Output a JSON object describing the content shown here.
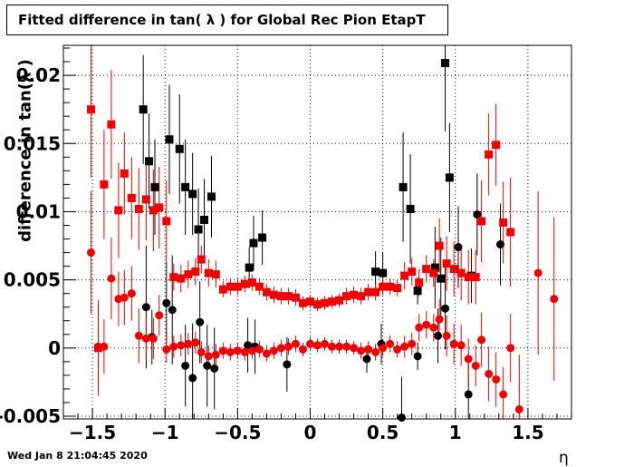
{
  "chart_data": {
    "type": "scatter",
    "title": "Fitted difference in tan( λ ) for Global Rec Pion EtapT",
    "xlabel": "η",
    "ylabel": "difference in tan(λ )",
    "xlim": [
      -1.7,
      1.8
    ],
    "ylim": [
      -0.0052,
      0.0222
    ],
    "xticks": [
      -1.5,
      -1,
      -0.5,
      0,
      0.5,
      1,
      1.5
    ],
    "xtick_labels": [
      "−1.5",
      "−1",
      "−0.5",
      "0",
      "0.5",
      "1",
      "1.5"
    ],
    "yticks": [
      -0.005,
      0,
      0.005,
      0.01,
      0.015,
      0.02
    ],
    "ytick_labels": [
      "-0.005",
      "0",
      "0.005",
      "0.01",
      "0.015",
      "0.02"
    ],
    "grid": true,
    "series": [
      {
        "color": "#000000",
        "marker": "square",
        "points": [
          [
            -1.15,
            0.0175,
            0.004
          ],
          [
            -1.11,
            0.0137,
            0.0035
          ],
          [
            -1.07,
            0.0118,
            0.0035
          ],
          [
            -0.97,
            0.0153,
            0.004
          ],
          [
            -0.9,
            0.0146,
            0.004
          ],
          [
            -0.86,
            0.0118,
            0.0035
          ],
          [
            -0.81,
            0.0113,
            0.003
          ],
          [
            -0.77,
            0.0087,
            0.003
          ],
          [
            -0.73,
            0.0094,
            0.003
          ],
          [
            -0.68,
            0.0111,
            0.003
          ],
          [
            -0.39,
            0.0077,
            0.002
          ],
          [
            -0.33,
            0.0081,
            0.002
          ],
          [
            -0.42,
            0.0059,
            0.0015
          ],
          [
            0.45,
            0.0056,
            0.0015
          ],
          [
            0.5,
            0.0055,
            0.0015
          ],
          [
            0.64,
            0.0118,
            0.004
          ],
          [
            0.69,
            0.0102,
            0.004
          ],
          [
            0.74,
            0.0042,
            0.001
          ],
          [
            0.9,
            0.0051,
            0.003
          ],
          [
            0.93,
            0.0209,
            0.005
          ],
          [
            0.96,
            0.0125,
            0.004
          ],
          [
            0.86,
            0.0059,
            0.003
          ],
          [
            1.11,
            0.0053,
            0.002
          ]
        ]
      },
      {
        "color": "#000000",
        "marker": "circle",
        "points": [
          [
            -1.13,
            0.003,
            0.0045
          ],
          [
            -1.09,
            0.0008,
            0.002
          ],
          [
            -0.99,
            0.0033,
            0.003
          ],
          [
            -0.95,
            0.0028,
            0.004
          ],
          [
            -0.86,
            -0.0013,
            0.003
          ],
          [
            -0.81,
            -0.0022,
            0.004
          ],
          [
            -0.76,
            0.0019,
            0.003
          ],
          [
            -0.71,
            -0.0013,
            0.003
          ],
          [
            -0.66,
            -0.0015,
            0.003
          ],
          [
            -0.43,
            0.0002,
            0.002
          ],
          [
            -0.38,
            0.0001,
            0.002
          ],
          [
            -0.16,
            -0.0012,
            0.002
          ],
          [
            0.39,
            -0.0008,
            0.001
          ],
          [
            0.49,
            0.0003,
            0.0015
          ],
          [
            0.63,
            -0.0051,
            0.003
          ],
          [
            0.74,
            -0.0006,
            0.001
          ],
          [
            0.88,
            0.0009,
            0.002
          ],
          [
            0.93,
            0.0029,
            0.003
          ],
          [
            1.02,
            0.0074,
            0.003
          ],
          [
            1.09,
            -0.0034,
            0.003
          ],
          [
            1.15,
            0.0098,
            0.003
          ],
          [
            1.31,
            0.0076,
            0.003
          ]
        ]
      },
      {
        "color": "#ee0000",
        "marker": "square",
        "points": [
          [
            -1.51,
            0.0175,
            0.005
          ],
          [
            -1.46,
            0.0,
            0.0035
          ],
          [
            -1.42,
            0.012,
            0.004
          ],
          [
            -1.37,
            0.0164,
            0.004
          ],
          [
            -1.32,
            0.0101,
            0.0035
          ],
          [
            -1.28,
            0.0128,
            0.003
          ],
          [
            -1.23,
            0.011,
            0.003
          ],
          [
            -1.18,
            0.0102,
            0.003
          ],
          [
            -1.13,
            0.0109,
            0.003
          ],
          [
            -1.08,
            0.0101,
            0.003
          ],
          [
            -1.04,
            0.0103,
            0.003
          ],
          [
            -0.99,
            0.0093,
            0.003
          ],
          [
            -0.94,
            0.0052,
            0.001
          ],
          [
            -0.89,
            0.0051,
            0.001
          ],
          [
            -0.84,
            0.0054,
            0.001
          ],
          [
            -0.79,
            0.0056,
            0.001
          ],
          [
            -0.75,
            0.0065,
            0.001
          ],
          [
            -0.7,
            0.0055,
            0.001
          ],
          [
            -0.65,
            0.0054,
            0.001
          ],
          [
            -0.6,
            0.0043,
            0.0006
          ],
          [
            -0.55,
            0.0045,
            0.0006
          ],
          [
            -0.5,
            0.0045,
            0.0006
          ],
          [
            -0.45,
            0.0047,
            0.0006
          ],
          [
            -0.4,
            0.0048,
            0.0006
          ],
          [
            -0.35,
            0.0045,
            0.0006
          ],
          [
            -0.3,
            0.0041,
            0.0006
          ],
          [
            -0.25,
            0.0039,
            0.0006
          ],
          [
            -0.2,
            0.0038,
            0.0006
          ],
          [
            -0.15,
            0.0038,
            0.0006
          ],
          [
            -0.1,
            0.0037,
            0.0006
          ],
          [
            -0.05,
            0.0033,
            0.0005
          ],
          [
            0.0,
            0.0034,
            0.0005
          ],
          [
            0.05,
            0.0032,
            0.0005
          ],
          [
            0.1,
            0.0033,
            0.0005
          ],
          [
            0.15,
            0.0034,
            0.0005
          ],
          [
            0.2,
            0.0035,
            0.0005
          ],
          [
            0.25,
            0.0038,
            0.0006
          ],
          [
            0.3,
            0.0039,
            0.0006
          ],
          [
            0.35,
            0.0038,
            0.0006
          ],
          [
            0.4,
            0.0041,
            0.0006
          ],
          [
            0.45,
            0.0041,
            0.0006
          ],
          [
            0.5,
            0.0045,
            0.0006
          ],
          [
            0.55,
            0.0045,
            0.0006
          ],
          [
            0.6,
            0.0044,
            0.0006
          ],
          [
            0.65,
            0.0053,
            0.001
          ],
          [
            0.7,
            0.0056,
            0.001
          ],
          [
            0.75,
            0.0048,
            0.001
          ],
          [
            0.8,
            0.0058,
            0.001
          ],
          [
            0.85,
            0.0055,
            0.001
          ],
          [
            0.89,
            0.0075,
            0.002
          ],
          [
            0.94,
            0.0062,
            0.002
          ],
          [
            0.99,
            0.0058,
            0.002
          ],
          [
            1.04,
            0.0055,
            0.002
          ],
          [
            1.09,
            0.0052,
            0.002
          ],
          [
            1.14,
            0.0052,
            0.002
          ],
          [
            1.18,
            0.0093,
            0.003
          ],
          [
            1.23,
            0.0142,
            0.003
          ],
          [
            1.28,
            0.0149,
            0.003
          ],
          [
            1.33,
            0.0092,
            0.003
          ],
          [
            1.38,
            0.0085,
            0.004
          ]
        ]
      },
      {
        "color": "#ee0000",
        "marker": "circle",
        "points": [
          [
            -1.51,
            0.007,
            0.0045
          ],
          [
            -1.46,
            0.0001,
            0.003
          ],
          [
            -1.42,
            0.0001,
            0.002
          ],
          [
            -1.37,
            0.0051,
            0.003
          ],
          [
            -1.32,
            0.0036,
            0.002
          ],
          [
            -1.28,
            0.0037,
            0.002
          ],
          [
            -1.23,
            0.004,
            0.002
          ],
          [
            -1.18,
            0.0009,
            0.002
          ],
          [
            -1.13,
            0.0007,
            0.0015
          ],
          [
            -1.08,
            0.0007,
            0.0015
          ],
          [
            -1.04,
            0.0024,
            0.0015
          ],
          [
            -0.99,
            -0.0001,
            0.001
          ],
          [
            -0.94,
            0.0001,
            0.0008
          ],
          [
            -0.89,
            0.0002,
            0.0008
          ],
          [
            -0.84,
            0.0003,
            0.0008
          ],
          [
            -0.79,
            0.0004,
            0.0008
          ],
          [
            -0.75,
            -0.0003,
            0.0008
          ],
          [
            -0.7,
            -0.0006,
            0.0008
          ],
          [
            -0.65,
            -0.0005,
            0.0008
          ],
          [
            -0.6,
            -0.0002,
            0.0006
          ],
          [
            -0.55,
            -0.0003,
            0.0006
          ],
          [
            -0.5,
            -0.0002,
            0.0006
          ],
          [
            -0.45,
            -0.0003,
            0.0006
          ],
          [
            -0.4,
            -0.0002,
            0.0006
          ],
          [
            -0.35,
            -0.0001,
            0.0006
          ],
          [
            -0.3,
            -0.0004,
            0.0006
          ],
          [
            -0.25,
            -0.0002,
            0.0006
          ],
          [
            -0.2,
            0.0,
            0.0006
          ],
          [
            -0.15,
            0.0001,
            0.0006
          ],
          [
            -0.1,
            0.0003,
            0.0006
          ],
          [
            -0.05,
            -0.0001,
            0.0005
          ],
          [
            0.0,
            0.0003,
            0.0005
          ],
          [
            0.05,
            0.0002,
            0.0005
          ],
          [
            0.1,
            0.0003,
            0.0005
          ],
          [
            0.15,
            0.0001,
            0.0005
          ],
          [
            0.2,
            0.0001,
            0.0005
          ],
          [
            0.25,
            0.0001,
            0.0005
          ],
          [
            0.3,
            0.0,
            0.0005
          ],
          [
            0.35,
            -0.0002,
            0.0006
          ],
          [
            0.4,
            -0.0001,
            0.0006
          ],
          [
            0.45,
            -0.0003,
            0.0006
          ],
          [
            0.5,
            0.0,
            0.0006
          ],
          [
            0.55,
            0.0003,
            0.0006
          ],
          [
            0.6,
            -0.0001,
            0.0006
          ],
          [
            0.65,
            0.0001,
            0.0008
          ],
          [
            0.7,
            0.0003,
            0.0008
          ],
          [
            0.75,
            0.0015,
            0.001
          ],
          [
            0.8,
            0.0017,
            0.001
          ],
          [
            0.85,
            0.0015,
            0.001
          ],
          [
            0.89,
            0.0021,
            0.0015
          ],
          [
            0.94,
            0.0009,
            0.0015
          ],
          [
            0.99,
            0.0003,
            0.0015
          ],
          [
            1.04,
            0.0002,
            0.0015
          ],
          [
            1.09,
            -0.0008,
            0.0015
          ],
          [
            1.14,
            -0.0013,
            0.0015
          ],
          [
            1.18,
            0.0006,
            0.002
          ],
          [
            1.23,
            -0.0019,
            0.002
          ],
          [
            1.28,
            -0.0023,
            0.002
          ],
          [
            1.33,
            -0.0034,
            0.002
          ],
          [
            1.38,
            0.0,
            0.0025
          ],
          [
            1.44,
            -0.0045,
            0.004
          ],
          [
            1.57,
            0.0055,
            0.006
          ],
          [
            1.68,
            0.0036,
            0.006
          ]
        ]
      }
    ]
  },
  "footer": {
    "timestamp": "Wed Jan  8 21:04:45 2020"
  }
}
